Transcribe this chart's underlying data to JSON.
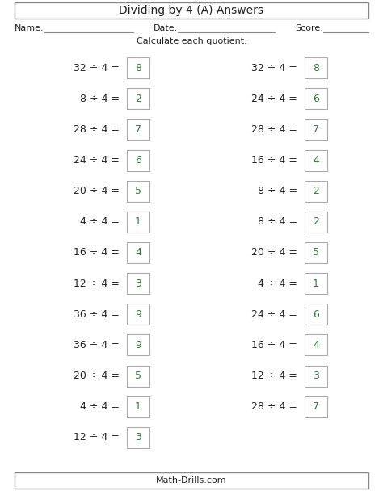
{
  "title": "Dividing by 4 (A) Answers",
  "subtitle": "Calculate each quotient.",
  "footer": "Math-Drills.com",
  "name_label": "Name:",
  "date_label": "Date:",
  "score_label": "Score:",
  "left_problems": [
    {
      "dividend": 32,
      "divisor": 4,
      "quotient": 8
    },
    {
      "dividend": 8,
      "divisor": 4,
      "quotient": 2
    },
    {
      "dividend": 28,
      "divisor": 4,
      "quotient": 7
    },
    {
      "dividend": 24,
      "divisor": 4,
      "quotient": 6
    },
    {
      "dividend": 20,
      "divisor": 4,
      "quotient": 5
    },
    {
      "dividend": 4,
      "divisor": 4,
      "quotient": 1
    },
    {
      "dividend": 16,
      "divisor": 4,
      "quotient": 4
    },
    {
      "dividend": 12,
      "divisor": 4,
      "quotient": 3
    },
    {
      "dividend": 36,
      "divisor": 4,
      "quotient": 9
    },
    {
      "dividend": 36,
      "divisor": 4,
      "quotient": 9
    },
    {
      "dividend": 20,
      "divisor": 4,
      "quotient": 5
    },
    {
      "dividend": 4,
      "divisor": 4,
      "quotient": 1
    },
    {
      "dividend": 12,
      "divisor": 4,
      "quotient": 3
    }
  ],
  "right_problems": [
    {
      "dividend": 32,
      "divisor": 4,
      "quotient": 8
    },
    {
      "dividend": 24,
      "divisor": 4,
      "quotient": 6
    },
    {
      "dividend": 28,
      "divisor": 4,
      "quotient": 7
    },
    {
      "dividend": 16,
      "divisor": 4,
      "quotient": 4
    },
    {
      "dividend": 8,
      "divisor": 4,
      "quotient": 2
    },
    {
      "dividend": 8,
      "divisor": 4,
      "quotient": 2
    },
    {
      "dividend": 20,
      "divisor": 4,
      "quotient": 5
    },
    {
      "dividend": 4,
      "divisor": 4,
      "quotient": 1
    },
    {
      "dividend": 24,
      "divisor": 4,
      "quotient": 6
    },
    {
      "dividend": 16,
      "divisor": 4,
      "quotient": 4
    },
    {
      "dividend": 12,
      "divisor": 4,
      "quotient": 3
    },
    {
      "dividend": 28,
      "divisor": 4,
      "quotient": 7
    }
  ],
  "text_color": "#222222",
  "answer_color": "#2e7d32",
  "box_edge_color": "#aaaaaa",
  "background_color": "#ffffff",
  "problem_fontsize": 9,
  "answer_fontsize": 9,
  "title_fontsize": 10,
  "label_fontsize": 8,
  "footer_fontsize": 8
}
